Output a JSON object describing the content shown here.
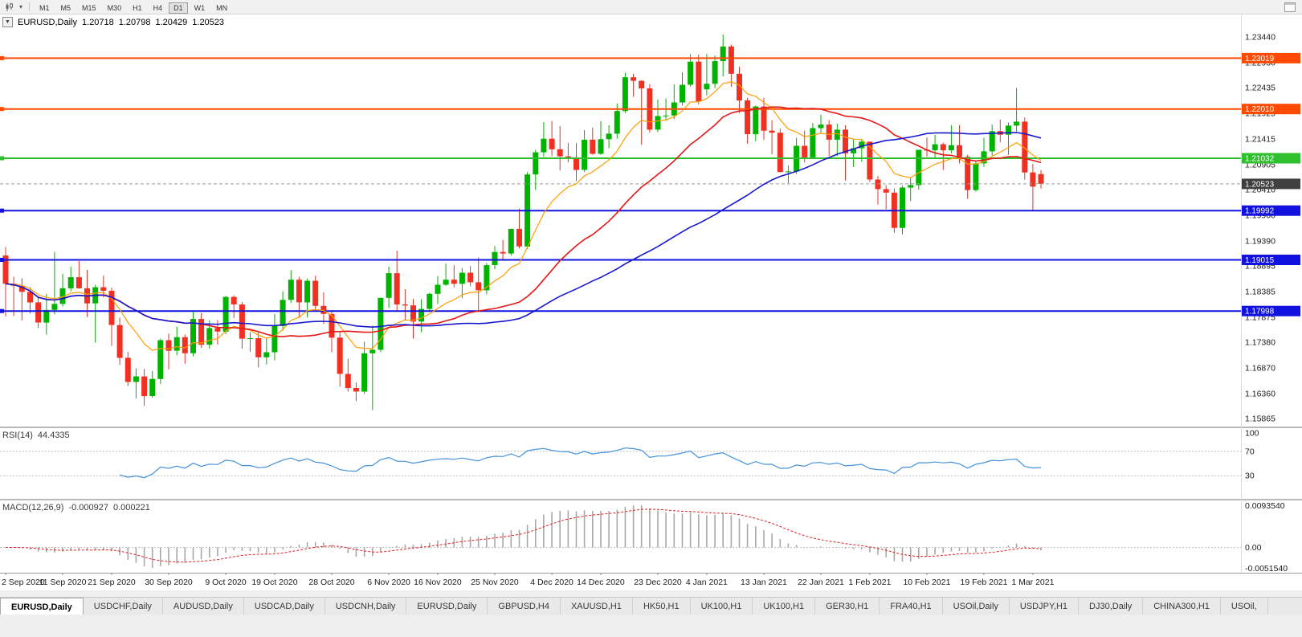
{
  "toolbar": {
    "timeframes": [
      "M1",
      "M5",
      "M15",
      "M30",
      "H1",
      "H4",
      "D1",
      "W1",
      "MN"
    ],
    "active_timeframe": "D1"
  },
  "icons": {
    "caret_down": "▼",
    "toolbar_caret": "▾",
    "chart_type": "candlestick-chart",
    "window_restore": "restore-window"
  },
  "symbol_header": {
    "symbol": "EURUSD,Daily",
    "open": "1.20718",
    "high": "1.20798",
    "low": "1.20429",
    "close": "1.20523"
  },
  "chart_data": {
    "type": "candlestick",
    "symbol": "EURUSD",
    "timeframe": "Daily",
    "up_color": "#00b300",
    "down_color": "#ef3124",
    "price_axis": {
      "view_max": 1.23887,
      "view_min": 1.15705,
      "labels": [
        "1.23440",
        "1.22930",
        "1.22435",
        "1.21925",
        "1.21415",
        "1.20905",
        "1.20410",
        "1.19900",
        "1.19390",
        "1.18895",
        "1.18385",
        "1.17875",
        "1.17380",
        "1.16870",
        "1.16360",
        "1.15865"
      ]
    },
    "x_ticks": [
      {
        "index": 0,
        "label": "2 Sep 2020"
      },
      {
        "index": 7,
        "label": "11 Sep 2020"
      },
      {
        "index": 13,
        "label": "21 Sep 2020"
      },
      {
        "index": 20,
        "label": "30 Sep 2020"
      },
      {
        "index": 27,
        "label": "9 Oct 2020"
      },
      {
        "index": 33,
        "label": "19 Oct 2020"
      },
      {
        "index": 40,
        "label": "28 Oct 2020"
      },
      {
        "index": 47,
        "label": "6 Nov 2020"
      },
      {
        "index": 53,
        "label": "16 Nov 2020"
      },
      {
        "index": 60,
        "label": "25 Nov 2020"
      },
      {
        "index": 67,
        "label": "4 Dec 2020"
      },
      {
        "index": 73,
        "label": "14 Dec 2020"
      },
      {
        "index": 80,
        "label": "23 Dec 2020"
      },
      {
        "index": 86,
        "label": "4 Jan 2021"
      },
      {
        "index": 93,
        "label": "13 Jan 2021"
      },
      {
        "index": 100,
        "label": "22 Jan 2021"
      },
      {
        "index": 106,
        "label": "1 Feb 2021"
      },
      {
        "index": 113,
        "label": "10 Feb 2021"
      },
      {
        "index": 120,
        "label": "19 Feb 2021"
      },
      {
        "index": 126,
        "label": "1 Mar 2021"
      }
    ],
    "h_lines": [
      {
        "price": 1.23019,
        "label": "1.23019",
        "color": "#ff4a00"
      },
      {
        "price": 1.2201,
        "label": "1.22010",
        "color": "#ff4a00"
      },
      {
        "price": 1.21032,
        "label": "1.21032",
        "color": "#2fbf2f"
      },
      {
        "price": 1.19992,
        "label": "1.19992",
        "color": "#1212e0"
      },
      {
        "price": 1.19015,
        "label": "1.19015",
        "color": "#1212e0"
      },
      {
        "price": 1.17998,
        "label": "1.17998",
        "color": "#1212e0"
      }
    ],
    "bid_line": {
      "price": 1.20523,
      "label": "1.20523",
      "line_color": "#9b9b9b",
      "tag_color": "#3f3f3f"
    },
    "moving_averages": [
      {
        "name": "fast-ma",
        "type": "ema",
        "period": 10,
        "color": "#ff9c00",
        "width": 1.2
      },
      {
        "name": "mid-ma",
        "type": "sma",
        "period": 25,
        "color": "#e51717",
        "width": 1.6
      },
      {
        "name": "slow-ma",
        "type": "sma",
        "period": 50,
        "color": "#1717cf",
        "width": 1.6
      }
    ],
    "indicators": {
      "rsi": {
        "label": "RSI(14)",
        "value_label": "44.4335",
        "period": 14,
        "levels": [
          100,
          70,
          30
        ],
        "color": "#4492dd"
      },
      "macd": {
        "label": "MACD(12,26,9)",
        "macd_value": "-0.000927",
        "signal_value": "0.000221",
        "fast": 12,
        "slow": 26,
        "signal": 9,
        "axis_labels": [
          "0.0093540",
          "0.00",
          "-0.0051540"
        ],
        "hist_color": "#a8a8a8",
        "signal_color": "#e02020"
      }
    },
    "candles": [
      [
        1.191,
        1.1927,
        1.1789,
        1.1854
      ],
      [
        1.1854,
        1.1868,
        1.179,
        1.185
      ],
      [
        1.185,
        1.1865,
        1.1781,
        1.1838
      ],
      [
        1.1838,
        1.1847,
        1.1795,
        1.1817
      ],
      [
        1.1817,
        1.1827,
        1.1766,
        1.1777
      ],
      [
        1.1777,
        1.1834,
        1.1753,
        1.1802
      ],
      [
        1.1802,
        1.1917,
        1.1793,
        1.1814
      ],
      [
        1.1814,
        1.1874,
        1.1809,
        1.1845
      ],
      [
        1.1845,
        1.1888,
        1.1839,
        1.1867
      ],
      [
        1.1867,
        1.1899,
        1.1844,
        1.1845
      ],
      [
        1.1845,
        1.1882,
        1.1788,
        1.1815
      ],
      [
        1.1815,
        1.1852,
        1.1737,
        1.1847
      ],
      [
        1.1847,
        1.187,
        1.1827,
        1.184
      ],
      [
        1.184,
        1.1846,
        1.1731,
        1.1772
      ],
      [
        1.1772,
        1.1787,
        1.1693,
        1.1707
      ],
      [
        1.1707,
        1.1719,
        1.1651,
        1.1659
      ],
      [
        1.1659,
        1.1686,
        1.1626,
        1.167
      ],
      [
        1.167,
        1.1685,
        1.1612,
        1.1631
      ],
      [
        1.1631,
        1.1681,
        1.1628,
        1.1665
      ],
      [
        1.1665,
        1.1745,
        1.1655,
        1.1742
      ],
      [
        1.1742,
        1.1755,
        1.1684,
        1.1721
      ],
      [
        1.1721,
        1.1769,
        1.1712,
        1.1748
      ],
      [
        1.1748,
        1.1753,
        1.1695,
        1.1716
      ],
      [
        1.1716,
        1.1798,
        1.171,
        1.1784
      ],
      [
        1.1784,
        1.1796,
        1.1727,
        1.1733
      ],
      [
        1.1733,
        1.1781,
        1.1725,
        1.1766
      ],
      [
        1.1766,
        1.1782,
        1.1733,
        1.1759
      ],
      [
        1.1759,
        1.183,
        1.1754,
        1.1828
      ],
      [
        1.1828,
        1.1831,
        1.1786,
        1.1813
      ],
      [
        1.1813,
        1.1818,
        1.1725,
        1.1745
      ],
      [
        1.1745,
        1.1758,
        1.1719,
        1.1746
      ],
      [
        1.1746,
        1.1758,
        1.1688,
        1.1708
      ],
      [
        1.1708,
        1.1747,
        1.1694,
        1.1718
      ],
      [
        1.1718,
        1.1794,
        1.1702,
        1.177
      ],
      [
        1.177,
        1.1839,
        1.1761,
        1.1822
      ],
      [
        1.1822,
        1.1881,
        1.1816,
        1.1862
      ],
      [
        1.1862,
        1.1868,
        1.1786,
        1.1817
      ],
      [
        1.1817,
        1.1864,
        1.1787,
        1.186
      ],
      [
        1.186,
        1.187,
        1.1799,
        1.181
      ],
      [
        1.181,
        1.1837,
        1.1774,
        1.1794
      ],
      [
        1.1794,
        1.1801,
        1.1718,
        1.1747
      ],
      [
        1.1747,
        1.1759,
        1.165,
        1.1675
      ],
      [
        1.1675,
        1.1705,
        1.164,
        1.1647
      ],
      [
        1.1647,
        1.1658,
        1.1621,
        1.164
      ],
      [
        1.164,
        1.1739,
        1.1635,
        1.1716
      ],
      [
        1.1716,
        1.1771,
        1.1603,
        1.1723
      ],
      [
        1.1723,
        1.1826,
        1.1718,
        1.1826
      ],
      [
        1.1826,
        1.1888,
        1.1806,
        1.1875
      ],
      [
        1.1875,
        1.192,
        1.1801,
        1.1813
      ],
      [
        1.1813,
        1.1843,
        1.1781,
        1.1811
      ],
      [
        1.1811,
        1.1824,
        1.1745,
        1.1779
      ],
      [
        1.1779,
        1.1823,
        1.1758,
        1.1804
      ],
      [
        1.1804,
        1.1836,
        1.1799,
        1.1834
      ],
      [
        1.1834,
        1.1869,
        1.1814,
        1.1852
      ],
      [
        1.1852,
        1.1894,
        1.185,
        1.1862
      ],
      [
        1.1862,
        1.1891,
        1.1847,
        1.1854
      ],
      [
        1.1854,
        1.1885,
        1.1825,
        1.1876
      ],
      [
        1.1876,
        1.1889,
        1.1849,
        1.1857
      ],
      [
        1.1857,
        1.1906,
        1.18,
        1.1841
      ],
      [
        1.1841,
        1.1895,
        1.1833,
        1.1891
      ],
      [
        1.1891,
        1.1929,
        1.1883,
        1.1917
      ],
      [
        1.1917,
        1.1941,
        1.1902,
        1.1914
      ],
      [
        1.1914,
        1.1963,
        1.191,
        1.1963
      ],
      [
        1.1963,
        1.2003,
        1.1924,
        1.1928
      ],
      [
        1.1928,
        1.2076,
        1.1923,
        1.2071
      ],
      [
        1.2071,
        1.212,
        1.204,
        1.2115
      ],
      [
        1.2115,
        1.2175,
        1.2106,
        1.2142
      ],
      [
        1.2142,
        1.2177,
        1.2107,
        1.2121
      ],
      [
        1.2121,
        1.2167,
        1.2079,
        1.2107
      ],
      [
        1.2107,
        1.2134,
        1.2095,
        1.2105
      ],
      [
        1.2105,
        1.2133,
        1.2058,
        1.208
      ],
      [
        1.208,
        1.2159,
        1.2076,
        1.214
      ],
      [
        1.214,
        1.2164,
        1.211,
        1.2112
      ],
      [
        1.2112,
        1.2177,
        1.211,
        1.2141
      ],
      [
        1.2141,
        1.2169,
        1.2123,
        1.2152
      ],
      [
        1.2152,
        1.2212,
        1.2142,
        1.2197
      ],
      [
        1.2197,
        1.2273,
        1.2193,
        1.2264
      ],
      [
        1.2264,
        1.2271,
        1.2225,
        1.2257
      ],
      [
        1.2257,
        1.2258,
        1.213,
        1.2242
      ],
      [
        1.2242,
        1.225,
        1.2154,
        1.216
      ],
      [
        1.216,
        1.222,
        1.2155,
        1.2187
      ],
      [
        1.2187,
        1.2222,
        1.2178,
        1.2188
      ],
      [
        1.2188,
        1.225,
        1.2181,
        1.2214
      ],
      [
        1.2214,
        1.2274,
        1.2208,
        1.2249
      ],
      [
        1.2249,
        1.231,
        1.2245,
        1.2295
      ],
      [
        1.2295,
        1.2309,
        1.221,
        1.2216
      ],
      [
        1.224,
        1.231,
        1.2228,
        1.2251
      ],
      [
        1.2251,
        1.2307,
        1.2243,
        1.2296
      ],
      [
        1.2296,
        1.2349,
        1.2266,
        1.2325
      ],
      [
        1.2325,
        1.2329,
        1.2245,
        1.2271
      ],
      [
        1.2271,
        1.2285,
        1.2193,
        1.2218
      ],
      [
        1.2218,
        1.2223,
        1.2132,
        1.2151
      ],
      [
        1.2151,
        1.2208,
        1.2137,
        1.2206
      ],
      [
        1.2206,
        1.2223,
        1.214,
        1.2158
      ],
      [
        1.2158,
        1.2179,
        1.2111,
        1.2154
      ],
      [
        1.2154,
        1.2162,
        1.2075,
        1.2076
      ],
      [
        1.2076,
        1.2089,
        1.2054,
        1.2077
      ],
      [
        1.2077,
        1.2144,
        1.2072,
        1.2128
      ],
      [
        1.2128,
        1.2158,
        1.2095,
        1.2105
      ],
      [
        1.2105,
        1.2173,
        1.2102,
        1.2163
      ],
      [
        1.2163,
        1.219,
        1.2154,
        1.217
      ],
      [
        1.217,
        1.2179,
        1.2108,
        1.214
      ],
      [
        1.214,
        1.2172,
        1.2108,
        1.216
      ],
      [
        1.216,
        1.2169,
        1.2059,
        1.2113
      ],
      [
        1.2113,
        1.2142,
        1.2086,
        1.2123
      ],
      [
        1.2123,
        1.2142,
        1.2096,
        1.2136
      ],
      [
        1.2136,
        1.2137,
        1.2056,
        1.2061
      ],
      [
        1.2061,
        1.2068,
        1.2011,
        1.2042
      ],
      [
        1.2042,
        1.205,
        1.2002,
        1.2035
      ],
      [
        1.2035,
        1.2043,
        1.1955,
        1.1965
      ],
      [
        1.1965,
        1.2049,
        1.1952,
        1.2045
      ],
      [
        1.2045,
        1.2064,
        1.2018,
        1.205
      ],
      [
        1.205,
        1.212,
        1.2041,
        1.212
      ],
      [
        1.212,
        1.2144,
        1.2106,
        1.2119
      ],
      [
        1.2119,
        1.215,
        1.2102,
        1.2131
      ],
      [
        1.2131,
        1.2134,
        1.208,
        1.2119
      ],
      [
        1.2119,
        1.2169,
        1.2113,
        1.2129
      ],
      [
        1.2129,
        1.2169,
        1.2093,
        1.2106
      ],
      [
        1.2106,
        1.211,
        1.2023,
        1.204
      ],
      [
        1.204,
        1.2098,
        1.2037,
        1.2093
      ],
      [
        1.2093,
        1.2144,
        1.2086,
        1.2117
      ],
      [
        1.2117,
        1.217,
        1.2109,
        1.2157
      ],
      [
        1.2157,
        1.218,
        1.2135,
        1.215
      ],
      [
        1.215,
        1.2174,
        1.211,
        1.2168
      ],
      [
        1.2168,
        1.2243,
        1.2156,
        1.2176
      ],
      [
        1.2176,
        1.2184,
        1.2061,
        1.2075
      ],
      [
        1.2075,
        1.2092,
        1.1999,
        1.2047
      ],
      [
        1.20718,
        1.20798,
        1.20429,
        1.20523
      ]
    ]
  },
  "tabs": {
    "items": [
      {
        "label": "EURUSD,Daily",
        "active": true
      },
      {
        "label": "USDCHF,Daily",
        "active": false
      },
      {
        "label": "AUDUSD,Daily",
        "active": false
      },
      {
        "label": "USDCAD,Daily",
        "active": false
      },
      {
        "label": "USDCNH,Daily",
        "active": false
      },
      {
        "label": "EURUSD,Daily",
        "active": false
      },
      {
        "label": "GBPUSD,H4",
        "active": false
      },
      {
        "label": "XAUUSD,H1",
        "active": false
      },
      {
        "label": "HK50,H1",
        "active": false
      },
      {
        "label": "UK100,H1",
        "active": false
      },
      {
        "label": "UK100,H1",
        "active": false
      },
      {
        "label": "GER30,H1",
        "active": false
      },
      {
        "label": "FRA40,H1",
        "active": false
      },
      {
        "label": "USOil,Daily",
        "active": false
      },
      {
        "label": "USDJPY,H1",
        "active": false
      },
      {
        "label": "DJ30,Daily",
        "active": false
      },
      {
        "label": "CHINA300,H1",
        "active": false
      },
      {
        "label": "USOil,",
        "active": false
      }
    ]
  }
}
